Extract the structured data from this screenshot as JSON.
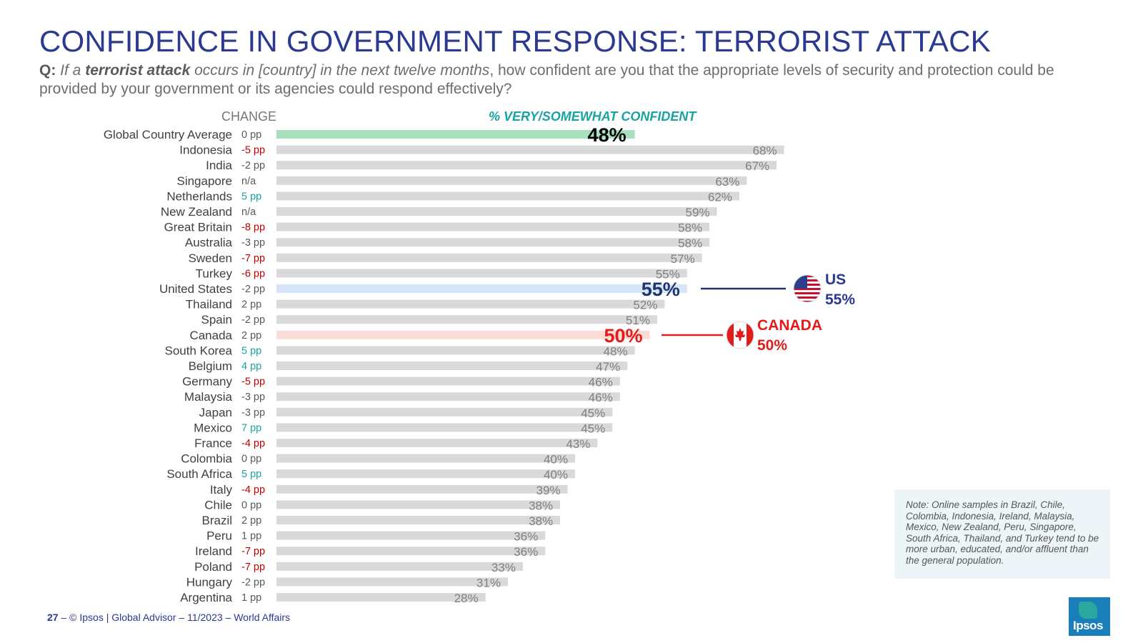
{
  "title": "CONFIDENCE IN GOVERNMENT RESPONSE: TERRORIST ATTACK",
  "question": {
    "label": "Q:",
    "part1": "If a",
    "part2": "terrorist attack",
    "part3": "occurs in [country] in the next twelve months",
    "part4": ", how confident are you that the appropriate levels of security and protection could be provided by your government or its agencies could respond effectively?"
  },
  "headers": {
    "change": "CHANGE",
    "pct": "% VERY/SOMEWHAT CONFIDENT"
  },
  "chart_data": {
    "type": "bar",
    "orientation": "horizontal",
    "title": "% VERY/SOMEWHAT CONFIDENT",
    "value_unit": "%",
    "xlim": [
      0,
      100
    ],
    "categories": [
      "Global Country Average",
      "Indonesia",
      "India",
      "Singapore",
      "Netherlands",
      "New Zealand",
      "Great Britain",
      "Australia",
      "Sweden",
      "Turkey",
      "United States",
      "Thailand",
      "Spain",
      "Canada",
      "South Korea",
      "Belgium",
      "Germany",
      "Malaysia",
      "Japan",
      "Mexico",
      "France",
      "Colombia",
      "South Africa",
      "Italy",
      "Chile",
      "Brazil",
      "Peru",
      "Ireland",
      "Poland",
      "Hungary",
      "Argentina"
    ],
    "values": [
      48,
      68,
      67,
      63,
      62,
      59,
      58,
      58,
      57,
      55,
      55,
      52,
      51,
      50,
      48,
      47,
      46,
      46,
      45,
      45,
      43,
      40,
      40,
      39,
      38,
      38,
      36,
      36,
      33,
      31,
      28
    ],
    "value_labels": [
      "48%",
      "68%",
      "67%",
      "63%",
      "62%",
      "59%",
      "58%",
      "58%",
      "57%",
      "55%",
      "55%",
      "52%",
      "51%",
      "50%",
      "48%",
      "47%",
      "46%",
      "46%",
      "45%",
      "45%",
      "43%",
      "40%",
      "40%",
      "39%",
      "38%",
      "38%",
      "36%",
      "36%",
      "33%",
      "31%",
      "28%"
    ],
    "changes": [
      "0 pp",
      "-5 pp",
      "-2 pp",
      "n/a",
      "5 pp",
      "n/a",
      "-8 pp",
      "-3 pp",
      "-7 pp",
      "-6 pp",
      "-2 pp",
      "2 pp",
      "-2 pp",
      "2 pp",
      "5 pp",
      "4 pp",
      "-5 pp",
      "-3 pp",
      "-3 pp",
      "7 pp",
      "-4 pp",
      "0 pp",
      "5 pp",
      "-4 pp",
      "0 pp",
      "2 pp",
      "1 pp",
      "-7 pp",
      "-7 pp",
      "-2 pp",
      "1 pp"
    ],
    "change_styles": [
      "neutral",
      "negative",
      "neutral",
      "neutral",
      "positive",
      "neutral",
      "negative",
      "neutral",
      "negative",
      "negative",
      "neutral",
      "neutral",
      "neutral",
      "neutral",
      "positive",
      "positive",
      "negative",
      "neutral",
      "neutral",
      "positive",
      "negative",
      "neutral",
      "positive",
      "negative",
      "neutral",
      "neutral",
      "neutral",
      "negative",
      "negative",
      "neutral",
      "neutral"
    ],
    "highlights": {
      "Global Country Average": "average",
      "United States": "us",
      "Canada": "canada"
    }
  },
  "colors": {
    "title": "#2B3990",
    "bar_default": "#d9d9d9",
    "bar_average": "#a8e0be",
    "bar_us": "#d6e6f8",
    "bar_canada": "#fbdcd6",
    "label_default": "#7f7f7f",
    "label_average": "#000000",
    "label_us": "#1f3370",
    "label_canada": "#e21b1b",
    "change_negative": "#c00000",
    "change_positive": "#1aa3a3",
    "change_neutral": "#595959"
  },
  "callouts": {
    "us": {
      "label": "US",
      "value": "55%",
      "icon": "us-flag-icon"
    },
    "canada": {
      "label": "CANADA",
      "value": "50%",
      "icon": "canada-flag-icon"
    }
  },
  "note": "Note: Online samples in Brazil, Chile, Colombia, Indonesia, Ireland, Malaysia, Mexico, New Zealand, Peru, Singapore, South Africa, Thailand, and Turkey tend to be more urban, educated, and/or affluent than the general population.",
  "footer": {
    "page": "27",
    "dash": " – ",
    "text": "© Ipsos | Global Advisor – 11/2023 – World Affairs"
  },
  "logo": {
    "text": "Ipsos"
  }
}
